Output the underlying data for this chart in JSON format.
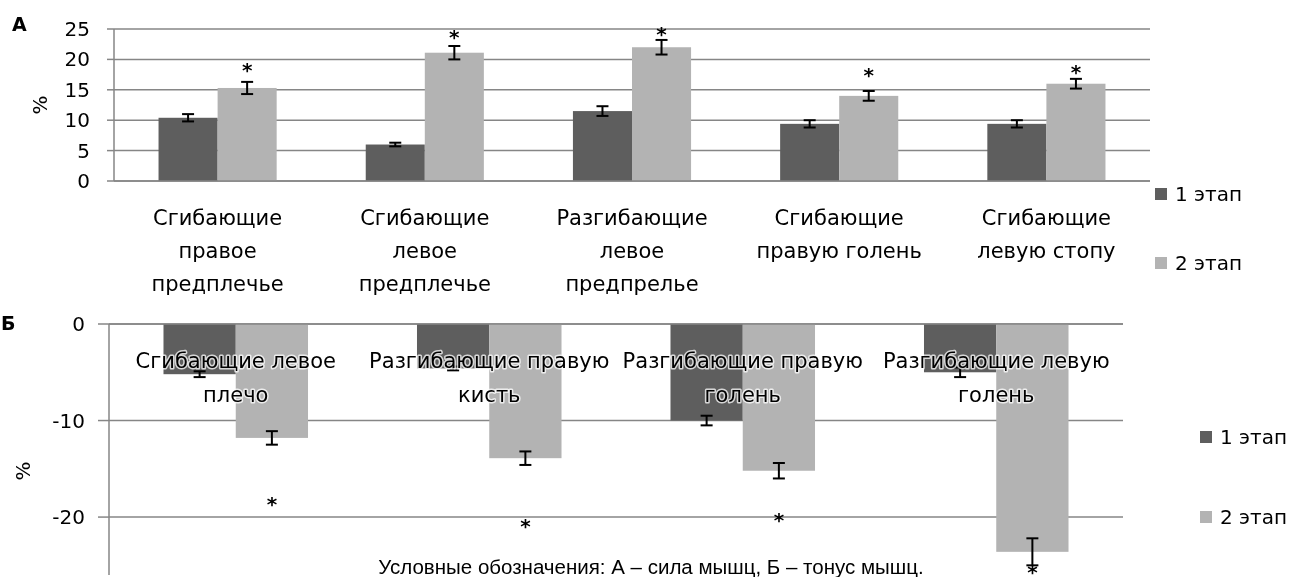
{
  "chart_data": [
    {
      "type": "bar",
      "title": "А",
      "ylabel": "%",
      "categories": [
        "Сгибающие правое предплечье",
        "Сгибающие левое предплечье",
        "Разгибающие левое предпрелье",
        "Сгибающие правую голень",
        "Сгибающие левую стопу"
      ],
      "series": [
        {
          "name": "1 этап",
          "color": "#5e5e5e",
          "values": [
            10.4,
            6.0,
            11.5,
            9.4,
            9.4
          ],
          "errors": [
            0.6,
            0.3,
            0.8,
            0.6,
            0.6
          ]
        },
        {
          "name": "2 этап",
          "color": "#b3b3b3",
          "values": [
            15.3,
            21.1,
            22.0,
            14.0,
            16.0
          ],
          "errors": [
            1.0,
            1.1,
            1.2,
            0.8,
            0.8
          ]
        }
      ],
      "ylim": [
        0,
        25
      ],
      "yticks": [
        0,
        5,
        10,
        15,
        20,
        25
      ],
      "grid": "y",
      "legend": "right",
      "annotations": [
        "*",
        "*",
        "*",
        "*",
        "*"
      ]
    },
    {
      "type": "bar",
      "title": "Б",
      "ylabel": "%",
      "categories": [
        "Сгибающие левое плечо",
        "Разгибающие правую кисть",
        "Разгибающие правую голень",
        "Разгибающие левую голень"
      ],
      "series": [
        {
          "name": "1 этап",
          "color": "#5e5e5e",
          "values": [
            -5.2,
            -4.6,
            -10.0,
            -5.0
          ],
          "errors": [
            0.3,
            0.2,
            0.5,
            0.5
          ]
        },
        {
          "name": "2 этап",
          "color": "#b3b3b3",
          "values": [
            -11.8,
            -13.9,
            -15.2,
            -23.6
          ],
          "errors": [
            0.7,
            0.7,
            0.8,
            1.4
          ]
        }
      ],
      "ylim": [
        -26,
        0
      ],
      "yticks": [
        -20,
        -10,
        0
      ],
      "grid": "y",
      "legend": "right",
      "annotations": [
        "*",
        "*",
        "*",
        "*",
        "Условные обозначения: А – сила мышц, Б – тонус мышц."
      ]
    }
  ]
}
